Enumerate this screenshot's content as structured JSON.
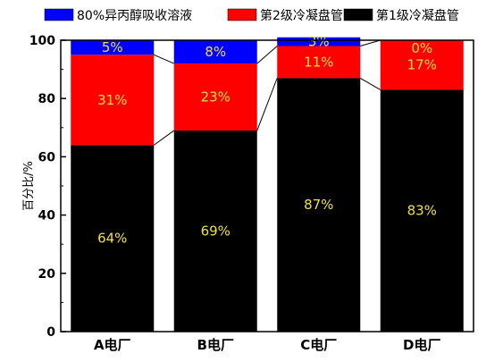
{
  "chart_data": {
    "type": "bar",
    "stacked": true,
    "normalized": true,
    "categories": [
      "A电厂",
      "B电厂",
      "C电厂",
      "D电厂"
    ],
    "series": [
      {
        "name": "第1级冷凝盘管",
        "color": "#000000",
        "values": [
          64,
          69,
          87,
          83
        ],
        "labels": [
          "64%",
          "69%",
          "87%",
          "83%"
        ]
      },
      {
        "name": "第2级冷凝盘管",
        "color": "#ff0000",
        "values": [
          31,
          23,
          11,
          17
        ],
        "labels": [
          "31%",
          "23%",
          "11%",
          "17%"
        ]
      },
      {
        "name": "80%异丙醇吸收溶液",
        "color": "#0000ff",
        "values": [
          5,
          8,
          3,
          0
        ],
        "labels": [
          "5%",
          "8%",
          "3%",
          "0%"
        ]
      }
    ],
    "legend_order": [
      2,
      1,
      0
    ],
    "legend_position": "top",
    "ylabel": "百分比/%",
    "xlabel": "",
    "ylim": [
      0,
      100
    ],
    "yticks": [
      0,
      20,
      40,
      60,
      80,
      100
    ],
    "connector_lines": true,
    "label_color": "#f0e040"
  }
}
